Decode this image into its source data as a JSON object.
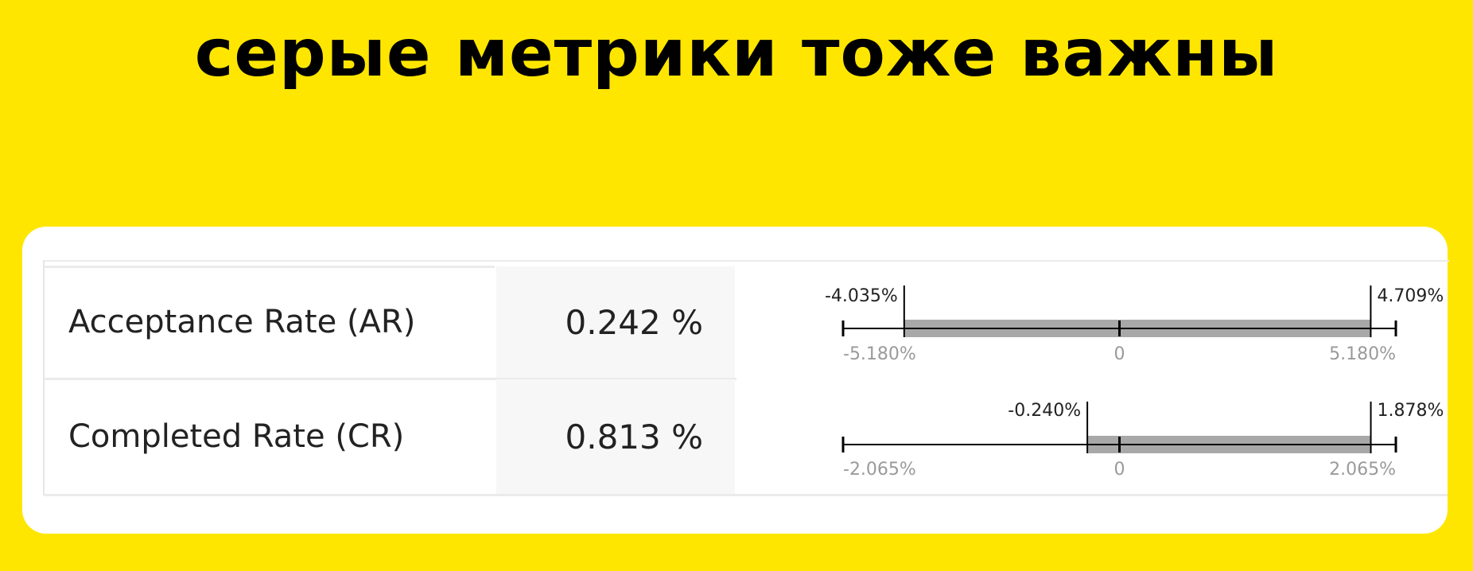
{
  "title": "серые метрики тоже важны",
  "chart_data": {
    "type": "table",
    "metrics": [
      {
        "name": "Acceptance Rate (AR)",
        "value": "0.242 %",
        "ci_low": -4.035,
        "ci_high": 4.709,
        "ci_low_label": "-4.035%",
        "ci_high_label": "4.709%",
        "axis_min": -5.18,
        "axis_max": 5.18,
        "axis_min_label": "-5.180%",
        "axis_zero_label": "0",
        "axis_max_label": "5.180%"
      },
      {
        "name": "Completed Rate (CR)",
        "value": "0.813 %",
        "ci_low": -0.24,
        "ci_high": 1.878,
        "ci_low_label": "-0.240%",
        "ci_high_label": "1.878%",
        "axis_min": -2.065,
        "axis_max": 2.065,
        "axis_min_label": "-2.065%",
        "axis_zero_label": "0",
        "axis_max_label": "2.065%"
      }
    ]
  },
  "colors": {
    "background": "#FFE600",
    "card": "#FFFFFF",
    "interval_band": "#A8A8A8",
    "axis_line": "#000000",
    "axis_label": "#9A9A9A",
    "ci_label": "#222222"
  }
}
